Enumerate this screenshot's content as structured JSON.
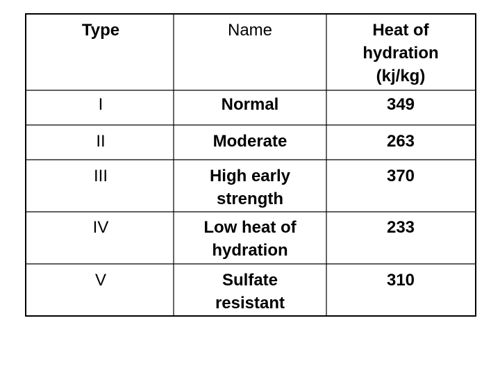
{
  "table": {
    "header": [
      "Type",
      "Name",
      "Heat of hydration (kj/kg)"
    ],
    "rows": [
      [
        "I",
        "Normal",
        "349"
      ],
      [
        "II",
        "Moderate",
        "263"
      ],
      [
        "III",
        "High early strength",
        "370"
      ],
      [
        "IV",
        "Low heat of hydration",
        "233"
      ],
      [
        "V",
        "Sulfate resistant",
        "310"
      ]
    ]
  }
}
